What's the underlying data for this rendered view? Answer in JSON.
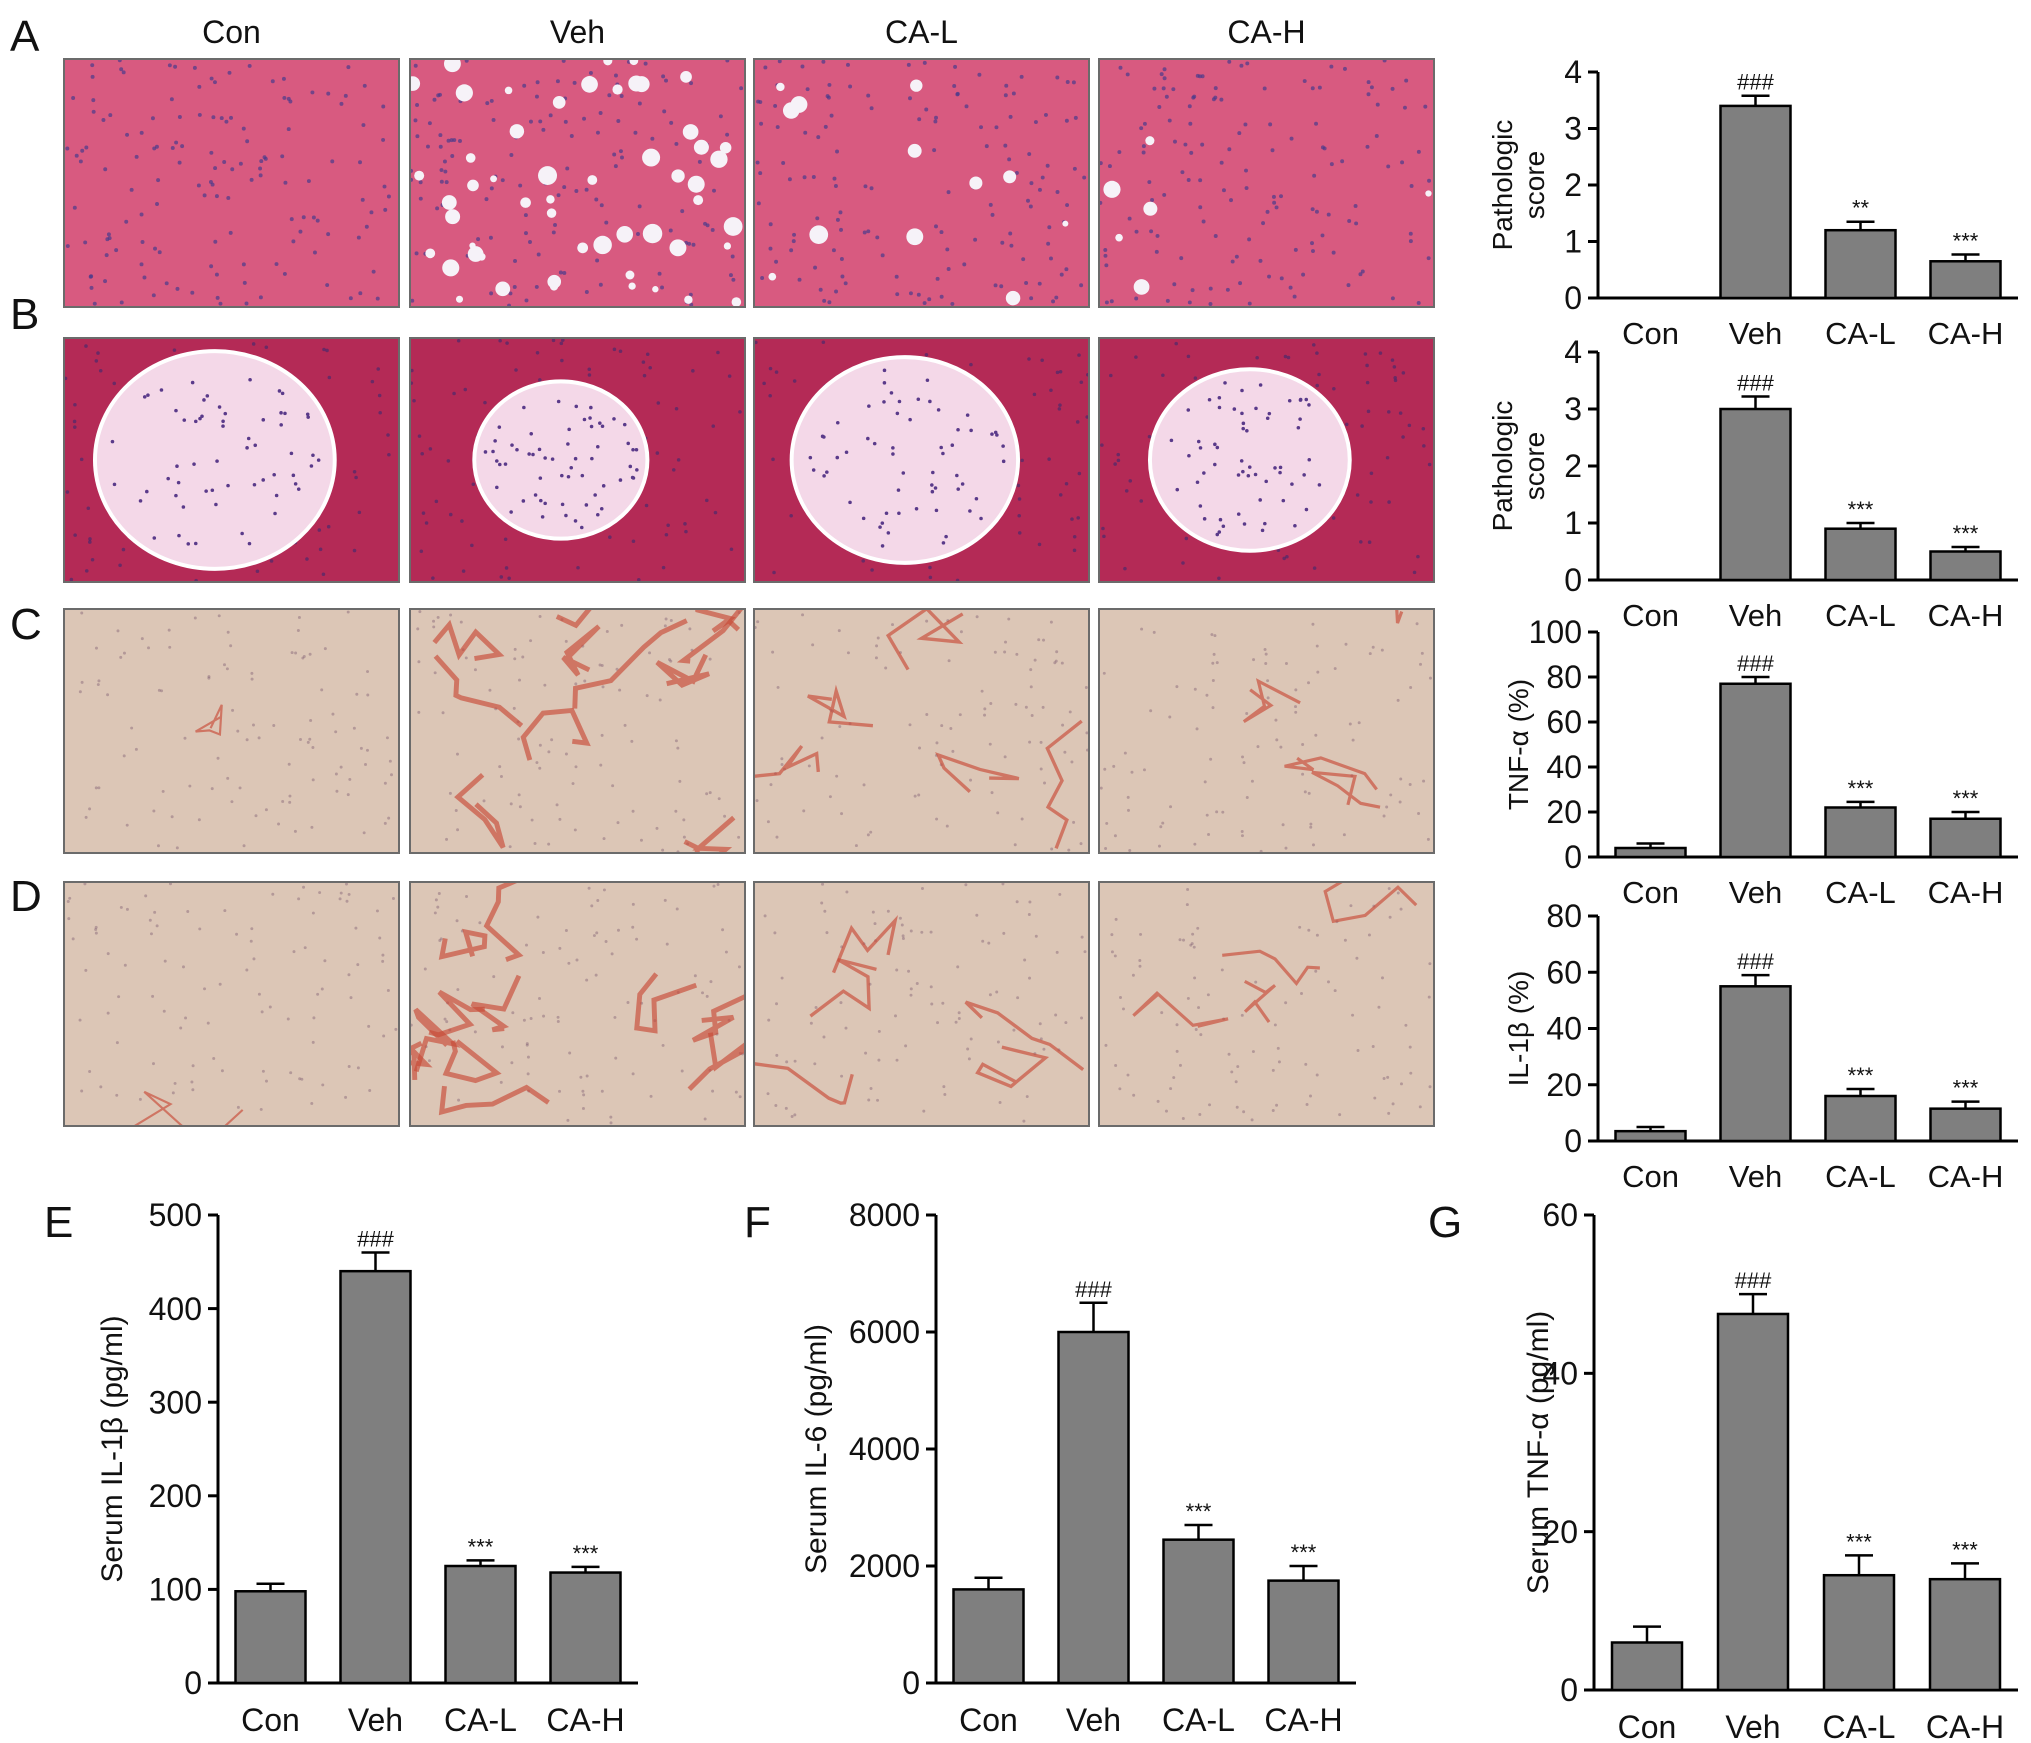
{
  "panel_letters": [
    "A",
    "B",
    "C",
    "D",
    "E",
    "F",
    "G"
  ],
  "column_headers": [
    "Con",
    "Veh",
    "CA-L",
    "CA-H"
  ],
  "stain_colors": {
    "he_liver": [
      "#d85a80",
      "#4a3a8c"
    ],
    "he_pancreas": [
      "#b42a56",
      "#f4d8e8"
    ],
    "ihc": [
      "#dcc6b6",
      "#c84a38"
    ]
  },
  "chart_data": [
    {
      "id": "A",
      "type": "bar",
      "categories": [
        "Con",
        "Veh",
        "CA-L",
        "CA-H"
      ],
      "values": [
        0,
        3.4,
        1.2,
        0.65
      ],
      "errors": [
        0,
        0.18,
        0.15,
        0.12
      ],
      "annotations": [
        "",
        "###",
        "**",
        "***"
      ],
      "ylabel_lines": [
        "Pathologic",
        "score"
      ],
      "ylim": [
        0,
        4
      ],
      "yticks": [
        0,
        1,
        2,
        3,
        4
      ],
      "bar_color": "#7f7f7f"
    },
    {
      "id": "B",
      "type": "bar",
      "categories": [
        "Con",
        "Veh",
        "CA-L",
        "CA-H"
      ],
      "values": [
        0,
        3.0,
        0.9,
        0.5
      ],
      "errors": [
        0,
        0.22,
        0.1,
        0.08
      ],
      "annotations": [
        "",
        "###",
        "***",
        "***"
      ],
      "ylabel_lines": [
        "Pathologic",
        "score"
      ],
      "ylim": [
        0,
        4
      ],
      "yticks": [
        0,
        1,
        2,
        3,
        4
      ],
      "bar_color": "#7f7f7f"
    },
    {
      "id": "C",
      "type": "bar",
      "categories": [
        "Con",
        "Veh",
        "CA-L",
        "CA-H"
      ],
      "values": [
        4,
        77,
        22,
        17
      ],
      "errors": [
        2,
        3,
        2.5,
        3
      ],
      "annotations": [
        "",
        "###",
        "***",
        "***"
      ],
      "ylabel_lines": [
        "TNF-α (%)"
      ],
      "ylim": [
        0,
        100
      ],
      "yticks": [
        0,
        20,
        40,
        60,
        80,
        100
      ],
      "bar_color": "#7f7f7f"
    },
    {
      "id": "D",
      "type": "bar",
      "categories": [
        "Con",
        "Veh",
        "CA-L",
        "CA-H"
      ],
      "values": [
        3.5,
        55,
        16,
        11.5
      ],
      "errors": [
        1.5,
        4,
        2.5,
        2.5
      ],
      "annotations": [
        "",
        "###",
        "***",
        "***"
      ],
      "ylabel_lines": [
        "IL-1β (%)"
      ],
      "ylim": [
        0,
        80
      ],
      "yticks": [
        0,
        20,
        40,
        60,
        80
      ],
      "bar_color": "#7f7f7f"
    },
    {
      "id": "E",
      "type": "bar",
      "categories": [
        "Con",
        "Veh",
        "CA-L",
        "CA-H"
      ],
      "values": [
        98,
        440,
        125,
        118
      ],
      "errors": [
        8,
        20,
        6,
        6
      ],
      "annotations": [
        "",
        "###",
        "***",
        "***"
      ],
      "ylabel_lines": [
        "Serum IL-1β (pg/ml)"
      ],
      "ylim": [
        0,
        500
      ],
      "yticks": [
        0,
        100,
        200,
        300,
        400,
        500
      ],
      "bar_color": "#7f7f7f"
    },
    {
      "id": "F",
      "type": "bar",
      "categories": [
        "Con",
        "Veh",
        "CA-L",
        "CA-H"
      ],
      "values": [
        1600,
        6000,
        2450,
        1750
      ],
      "errors": [
        200,
        500,
        250,
        250
      ],
      "annotations": [
        "",
        "###",
        "***",
        "***"
      ],
      "ylabel_lines": [
        "Serum IL-6 (pg/ml)"
      ],
      "ylim": [
        0,
        8000
      ],
      "yticks": [
        0,
        2000,
        4000,
        6000,
        8000
      ],
      "bar_color": "#7f7f7f"
    },
    {
      "id": "G",
      "type": "bar",
      "categories": [
        "Con",
        "Veh",
        "CA-L",
        "CA-H"
      ],
      "values": [
        6,
        47.5,
        14.5,
        14
      ],
      "errors": [
        2,
        2.5,
        2.5,
        2
      ],
      "annotations": [
        "",
        "###",
        "***",
        "***"
      ],
      "ylabel_lines": [
        "Serum TNF-α (pg/ml)"
      ],
      "ylim": [
        0,
        60
      ],
      "yticks": [
        0,
        20,
        40,
        60
      ],
      "bar_color": "#7f7f7f"
    }
  ]
}
